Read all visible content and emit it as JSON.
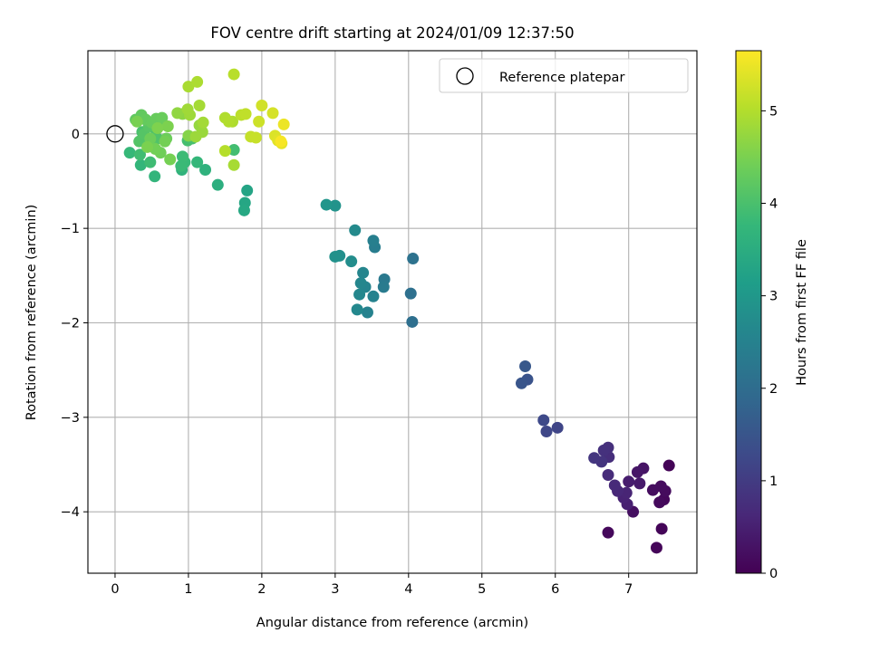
{
  "chart_data": {
    "type": "scatter",
    "title": "FOV centre drift starting at 2024/01/09 12:37:50",
    "xlabel": "Angular distance from reference (arcmin)",
    "ylabel": "Rotation from reference (arcmin)",
    "xlim": [
      -0.37,
      7.93
    ],
    "ylim": [
      -4.65,
      0.88
    ],
    "xticks": [
      0,
      1,
      2,
      3,
      4,
      5,
      6,
      7
    ],
    "yticks": [
      -4,
      -3,
      -2,
      -1,
      0
    ],
    "xtick_labels": [
      "0",
      "1",
      "2",
      "3",
      "4",
      "5",
      "6",
      "7"
    ],
    "ytick_labels": [
      "−4",
      "−3",
      "−2",
      "−1",
      "0"
    ],
    "grid": true,
    "legend": {
      "position": "top-right",
      "entries": [
        {
          "label": "Reference platepar",
          "marker": "open-circle",
          "x": 0,
          "y": 0
        }
      ]
    },
    "colorbar": {
      "label": "Hours from first FF file",
      "colormap": "viridis",
      "range": [
        0,
        5.65
      ],
      "ticks": [
        0,
        1,
        2,
        3,
        4,
        5
      ],
      "tick_labels": [
        "0",
        "1",
        "2",
        "3",
        "4",
        "5"
      ]
    },
    "colormap_stops": [
      "#440154",
      "#482878",
      "#3e4989",
      "#31688e",
      "#26828e",
      "#1f9e89",
      "#35b779",
      "#6ece58",
      "#b5de2b",
      "#fde725"
    ],
    "series": [
      {
        "points": [
          [
            7.55,
            -3.51,
            0.05
          ],
          [
            7.45,
            -4.18,
            0.07
          ],
          [
            7.38,
            -4.38,
            0.08
          ],
          [
            6.72,
            -4.22,
            0.12
          ],
          [
            7.48,
            -3.87,
            0.1
          ],
          [
            7.42,
            -3.9,
            0.14
          ],
          [
            7.5,
            -3.78,
            0.16
          ],
          [
            7.44,
            -3.73,
            0.18
          ],
          [
            7.33,
            -3.77,
            0.2
          ],
          [
            7.06,
            -4.0,
            0.22
          ],
          [
            7.2,
            -3.54,
            0.3
          ],
          [
            7.12,
            -3.58,
            0.34
          ],
          [
            7.15,
            -3.7,
            0.4
          ],
          [
            7.0,
            -3.68,
            0.45
          ],
          [
            6.98,
            -3.92,
            0.5
          ],
          [
            6.93,
            -3.85,
            0.55
          ],
          [
            6.97,
            -3.8,
            0.58
          ],
          [
            6.85,
            -3.78,
            0.62
          ],
          [
            6.81,
            -3.72,
            0.66
          ],
          [
            6.72,
            -3.61,
            0.7
          ],
          [
            6.73,
            -3.42,
            0.75
          ],
          [
            6.72,
            -3.32,
            0.78
          ],
          [
            6.66,
            -3.35,
            0.8
          ],
          [
            6.63,
            -3.47,
            0.85
          ],
          [
            6.53,
            -3.43,
            0.9
          ],
          [
            6.03,
            -3.11,
            1.18
          ],
          [
            5.88,
            -3.15,
            1.22
          ],
          [
            5.84,
            -3.03,
            1.25
          ],
          [
            5.62,
            -2.6,
            1.45
          ],
          [
            5.54,
            -2.64,
            1.5
          ],
          [
            5.59,
            -2.46,
            1.55
          ],
          [
            4.05,
            -1.99,
            2.05
          ],
          [
            4.03,
            -1.69,
            2.08
          ],
          [
            4.06,
            -1.32,
            2.12
          ],
          [
            3.67,
            -1.54,
            2.3
          ],
          [
            3.66,
            -1.62,
            2.35
          ],
          [
            3.54,
            -1.2,
            2.4
          ],
          [
            3.52,
            -1.13,
            2.45
          ],
          [
            3.52,
            -1.72,
            2.5
          ],
          [
            3.44,
            -1.89,
            2.52
          ],
          [
            3.41,
            -1.62,
            2.55
          ],
          [
            3.38,
            -1.47,
            2.58
          ],
          [
            3.35,
            -1.58,
            2.6
          ],
          [
            3.33,
            -1.7,
            2.62
          ],
          [
            3.3,
            -1.86,
            2.65
          ],
          [
            3.27,
            -1.02,
            2.7
          ],
          [
            3.22,
            -1.35,
            2.75
          ],
          [
            3.06,
            -1.29,
            2.8
          ],
          [
            3.0,
            -1.3,
            2.85
          ],
          [
            3.0,
            -0.76,
            2.9
          ],
          [
            2.88,
            -0.75,
            2.95
          ],
          [
            1.8,
            -0.6,
            3.3
          ],
          [
            1.77,
            -0.73,
            3.35
          ],
          [
            1.76,
            -0.81,
            3.38
          ],
          [
            1.4,
            -0.54,
            3.55
          ],
          [
            1.23,
            -0.38,
            3.62
          ],
          [
            0.91,
            -0.38,
            3.65
          ],
          [
            0.54,
            -0.45,
            3.7
          ],
          [
            0.35,
            -0.33,
            3.72
          ],
          [
            0.2,
            -0.2,
            3.78
          ],
          [
            1.12,
            -0.3,
            3.75
          ],
          [
            0.95,
            -0.3,
            3.8
          ],
          [
            0.92,
            -0.24,
            3.85
          ],
          [
            0.9,
            -0.34,
            3.82
          ],
          [
            0.48,
            -0.3,
            3.88
          ],
          [
            0.34,
            -0.22,
            3.9
          ],
          [
            1.62,
            -0.17,
            3.92
          ],
          [
            0.99,
            -0.07,
            3.95
          ],
          [
            1.05,
            -0.05,
            3.98
          ],
          [
            0.37,
            0.02,
            4.0
          ],
          [
            0.43,
            -0.08,
            4.02
          ],
          [
            0.55,
            0.05,
            4.05
          ],
          [
            0.58,
            -0.05,
            4.08
          ],
          [
            0.33,
            -0.08,
            4.1
          ],
          [
            0.4,
            0.0,
            4.12
          ],
          [
            0.46,
            0.08,
            4.15
          ],
          [
            0.5,
            -0.13,
            4.18
          ],
          [
            0.6,
            0.12,
            4.2
          ],
          [
            0.65,
            0.1,
            4.22
          ],
          [
            0.28,
            0.15,
            4.24
          ],
          [
            0.36,
            0.2,
            4.26
          ],
          [
            0.42,
            0.15,
            4.28
          ],
          [
            0.5,
            0.12,
            4.3
          ],
          [
            0.56,
            0.16,
            4.32
          ],
          [
            0.64,
            0.17,
            4.34
          ],
          [
            0.7,
            -0.05,
            4.36
          ],
          [
            0.48,
            -0.05,
            4.38
          ],
          [
            0.62,
            -0.2,
            4.4
          ],
          [
            0.55,
            -0.16,
            4.42
          ],
          [
            0.68,
            -0.08,
            4.44
          ],
          [
            0.75,
            -0.27,
            4.46
          ],
          [
            0.3,
            0.13,
            4.48
          ],
          [
            0.44,
            -0.14,
            4.5
          ],
          [
            0.72,
            0.08,
            4.52
          ],
          [
            0.58,
            0.06,
            4.54
          ],
          [
            1.0,
            -0.02,
            4.6
          ],
          [
            0.92,
            0.21,
            4.66
          ],
          [
            0.85,
            0.22,
            4.7
          ],
          [
            1.15,
            0.09,
            4.75
          ],
          [
            1.19,
            0.02,
            4.78
          ],
          [
            1.1,
            -0.03,
            4.8
          ],
          [
            1.02,
            0.2,
            4.82
          ],
          [
            0.99,
            0.26,
            4.84
          ],
          [
            1.2,
            0.12,
            4.86
          ],
          [
            1.15,
            0.3,
            4.88
          ],
          [
            1.62,
            -0.33,
            4.9
          ],
          [
            1.0,
            0.5,
            4.92
          ],
          [
            1.12,
            0.55,
            4.94
          ],
          [
            1.6,
            0.13,
            4.96
          ],
          [
            1.5,
            0.17,
            4.98
          ],
          [
            1.55,
            0.13,
            5.0
          ],
          [
            1.5,
            -0.18,
            5.02
          ],
          [
            1.62,
            0.63,
            5.05
          ],
          [
            1.72,
            0.2,
            5.08
          ],
          [
            1.78,
            0.21,
            5.12
          ],
          [
            1.85,
            -0.03,
            5.15
          ],
          [
            1.92,
            -0.04,
            5.18
          ],
          [
            1.96,
            0.13,
            5.22
          ],
          [
            2.0,
            0.3,
            5.26
          ],
          [
            2.15,
            0.22,
            5.3
          ],
          [
            2.18,
            -0.02,
            5.35
          ],
          [
            2.22,
            -0.07,
            5.4
          ],
          [
            2.27,
            -0.1,
            5.45
          ],
          [
            2.3,
            0.1,
            5.5
          ],
          [
            2.26,
            -0.08,
            5.6
          ]
        ]
      }
    ],
    "reference_point": {
      "x": 0,
      "y": 0
    }
  }
}
